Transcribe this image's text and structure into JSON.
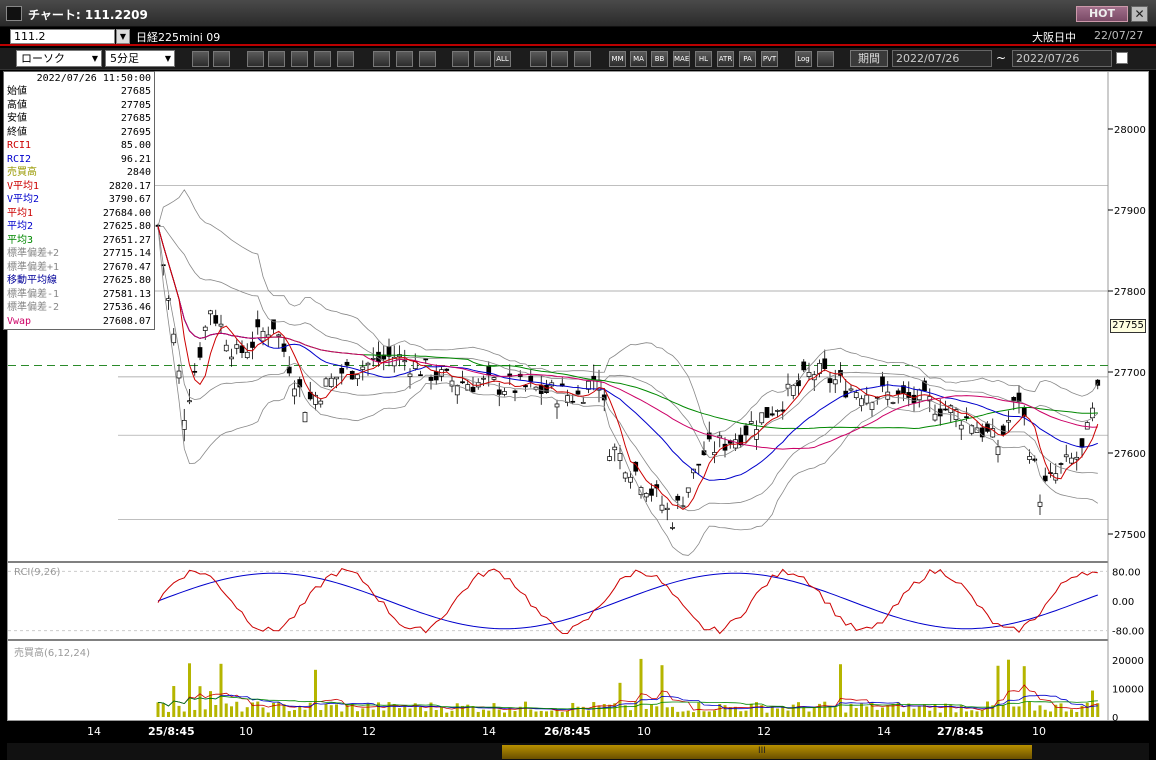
{
  "window": {
    "title": "チャート: 111.2209",
    "hot_label": "HOT",
    "close_label": "✕"
  },
  "symbol": {
    "code": "111.2",
    "instrument": "日経225mini 09",
    "session": "大阪日中",
    "session_date": "22/07/27"
  },
  "toolbar": {
    "chart_type": "ローソク",
    "interval": "5分足",
    "buttons": [
      "zoom",
      "grid",
      "down",
      "search",
      "table",
      "compare",
      "disabled",
      "pen",
      "select",
      "draw",
      "boxes",
      "box-b",
      "all",
      "pattern",
      "wrench",
      "palette",
      "mmm",
      "ma",
      "bb",
      "mae",
      "hl",
      "atr",
      "para",
      "pvt",
      "log",
      "copy"
    ],
    "button_labels": {
      "all": "ALL",
      "mmm": "MM",
      "ma": "MA",
      "bb": "BB",
      "mae": "MAE",
      "hl": "HL",
      "atr": "ATR",
      "para": "PA",
      "pvt": "PVT",
      "log": "Log"
    },
    "period_label": "期間",
    "date_from": "2022/07/26",
    "date_to": "2022/07/26"
  },
  "data_panel": {
    "timestamp": "2022/07/26  11:50:00",
    "rows": [
      {
        "label": "始値",
        "value": "27685",
        "color": "#000000"
      },
      {
        "label": "高値",
        "value": "27705",
        "color": "#000000"
      },
      {
        "label": "安値",
        "value": "27685",
        "color": "#000000"
      },
      {
        "label": "終値",
        "value": "27695",
        "color": "#000000"
      },
      {
        "label": "RCI1",
        "value": "85.00",
        "color": "#cc0000"
      },
      {
        "label": "RCI2",
        "value": "96.21",
        "color": "#0000cc"
      },
      {
        "label": "売買高",
        "value": "2840",
        "color": "#999900"
      },
      {
        "label": "V平均1",
        "value": "2820.17",
        "color": "#cc0000"
      },
      {
        "label": "V平均2",
        "value": "3790.67",
        "color": "#0000cc"
      },
      {
        "label": "平均1",
        "value": "27684.00",
        "color": "#cc0000"
      },
      {
        "label": "平均2",
        "value": "27625.80",
        "color": "#0000cc"
      },
      {
        "label": "平均3",
        "value": "27651.27",
        "color": "#008800"
      },
      {
        "label": "標準偏差+2",
        "value": "27715.14",
        "color": "#888888"
      },
      {
        "label": "標準偏差+1",
        "value": "27670.47",
        "color": "#888888"
      },
      {
        "label": "移動平均線",
        "value": "27625.80",
        "color": "#000099"
      },
      {
        "label": "標準偏差-1",
        "value": "27581.13",
        "color": "#888888"
      },
      {
        "label": "標準偏差-2",
        "value": "27536.46",
        "color": "#888888"
      },
      {
        "label": "Vwap",
        "value": "27608.07",
        "color": "#cc0066"
      }
    ]
  },
  "price_axis": {
    "ticks": [
      "28000",
      "27900",
      "27800",
      "27700",
      "27600",
      "27500"
    ],
    "tick_values": [
      28000,
      27900,
      27800,
      27700,
      27600,
      27500
    ],
    "current_price": "27755"
  },
  "rci_panel": {
    "label": "RCI(9,26)",
    "ticks": [
      "80.00",
      "0.00",
      "-80.00"
    ]
  },
  "volume_panel": {
    "label": "売買高(6,12,24)",
    "ticks": [
      "20000",
      "10000",
      "0"
    ]
  },
  "time_axis": [
    {
      "label": "14",
      "bold": false
    },
    {
      "label": "25/8:45",
      "bold": true
    },
    {
      "label": "10",
      "bold": false
    },
    {
      "label": "12",
      "bold": false
    },
    {
      "label": "14",
      "bold": false
    },
    {
      "label": "26/8:45",
      "bold": true
    },
    {
      "label": "10",
      "bold": false
    },
    {
      "label": "12",
      "bold": false
    },
    {
      "label": "14",
      "bold": false
    },
    {
      "label": "27/8:45",
      "bold": true
    },
    {
      "label": "10",
      "bold": false
    }
  ],
  "colors": {
    "ma1": "#cc0000",
    "ma2": "#0000cc",
    "ma3": "#008800",
    "vwap": "#cc0066",
    "bands": "#888888",
    "volume": "#b5b500",
    "rci1": "#cc0000",
    "rci2": "#0000cc"
  }
}
